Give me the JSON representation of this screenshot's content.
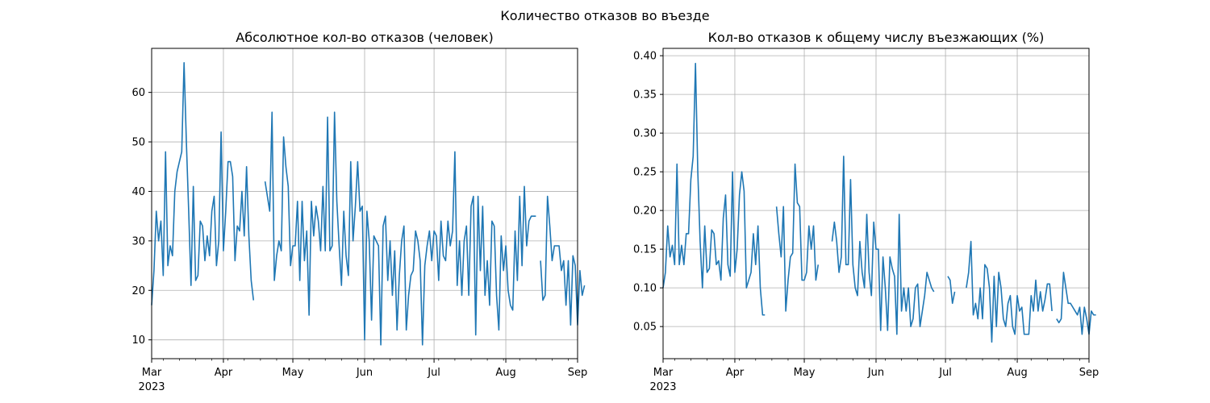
{
  "figure": {
    "suptitle": "Количество отказов во въезде"
  },
  "chart_data": [
    {
      "type": "line",
      "title": "Абсолютное кол-во отказов (человек)",
      "xlabel": "",
      "ylabel": "",
      "x_start": "2023-03-01",
      "xlim": [
        "2023-03-01",
        "2023-09-01"
      ],
      "ylim": [
        6.2,
        68.9
      ],
      "yticks": [
        10,
        20,
        30,
        40,
        50,
        60
      ],
      "xticks": [
        {
          "date": "2023-03-01",
          "label": "Mar",
          "sublabel": "2023"
        },
        {
          "date": "2023-04-01",
          "label": "Apr"
        },
        {
          "date": "2023-05-01",
          "label": "May"
        },
        {
          "date": "2023-06-01",
          "label": "Jun"
        },
        {
          "date": "2023-07-01",
          "label": "Jul"
        },
        {
          "date": "2023-08-01",
          "label": "Aug"
        },
        {
          "date": "2023-09-01",
          "label": "Sep"
        }
      ],
      "grid": true,
      "color": "#1f77b4",
      "series": [
        {
          "values": [
            17,
            24,
            36,
            30,
            34,
            23,
            48,
            25,
            29,
            27,
            40,
            44,
            46,
            48,
            66,
            50,
            36,
            21,
            41,
            22,
            23,
            34,
            33,
            26,
            31,
            27,
            36,
            39,
            25,
            30,
            52,
            28,
            36,
            46,
            46,
            43,
            26,
            33,
            32,
            40,
            31,
            45,
            31,
            22,
            18,
            null,
            null,
            null,
            null,
            42,
            39,
            36,
            56,
            22,
            27,
            30,
            28,
            51,
            45,
            41,
            25,
            29,
            29,
            38,
            22,
            38,
            26,
            32,
            15,
            38,
            31,
            37,
            34,
            28,
            41,
            28,
            55,
            28,
            29,
            56,
            38,
            29,
            21,
            36,
            27,
            23,
            46,
            30,
            37,
            46,
            36,
            37,
            10,
            36,
            30,
            14,
            31,
            30,
            29,
            9,
            33,
            35,
            22,
            30,
            19,
            28,
            12,
            23,
            30,
            33,
            12,
            19,
            23,
            24,
            32,
            30,
            26,
            9,
            25,
            29,
            32,
            26,
            32,
            31,
            22,
            34,
            27,
            26,
            34,
            29,
            32,
            48,
            21,
            30,
            19,
            30,
            33,
            19,
            37,
            39,
            11,
            39,
            24,
            37,
            19,
            26,
            17,
            34,
            33,
            19,
            12,
            31,
            24,
            29,
            20,
            17,
            16,
            32,
            22,
            39,
            25,
            41,
            29,
            34,
            35,
            35,
            35,
            null,
            26,
            18,
            19,
            39,
            33,
            26,
            29,
            29,
            29,
            24,
            26,
            17,
            26,
            13,
            27,
            25,
            13,
            24,
            19,
            21
          ]
        }
      ]
    },
    {
      "type": "line",
      "title": "Кол-во отказов к общему числу въезжающих (%)",
      "xlabel": "",
      "ylabel": "",
      "x_start": "2023-03-01",
      "xlim": [
        "2023-03-01",
        "2023-09-01"
      ],
      "ylim": [
        0.0085,
        0.4095
      ],
      "yticks": [
        0.05,
        0.1,
        0.15,
        0.2,
        0.25,
        0.3,
        0.35,
        0.4
      ],
      "ytick_labels": [
        "0.05",
        "0.10",
        "0.15",
        "0.20",
        "0.25",
        "0.30",
        "0.35",
        "0.40"
      ],
      "xticks": [
        {
          "date": "2023-03-01",
          "label": "Mar",
          "sublabel": "2023"
        },
        {
          "date": "2023-04-01",
          "label": "Apr"
        },
        {
          "date": "2023-05-01",
          "label": "May"
        },
        {
          "date": "2023-06-01",
          "label": "Jun"
        },
        {
          "date": "2023-07-01",
          "label": "Jul"
        },
        {
          "date": "2023-08-01",
          "label": "Aug"
        },
        {
          "date": "2023-09-01",
          "label": "Sep"
        }
      ],
      "grid": true,
      "color": "#1f77b4",
      "series": [
        {
          "values": [
            0.1,
            0.12,
            0.18,
            0.14,
            0.155,
            0.13,
            0.26,
            0.13,
            0.155,
            0.13,
            0.17,
            0.17,
            0.24,
            0.27,
            0.39,
            0.25,
            0.16,
            0.1,
            0.18,
            0.12,
            0.125,
            0.175,
            0.17,
            0.13,
            0.135,
            0.11,
            0.19,
            0.22,
            0.13,
            0.115,
            0.25,
            0.12,
            0.15,
            0.22,
            0.25,
            0.225,
            0.1,
            0.11,
            0.12,
            0.17,
            0.13,
            0.18,
            0.1,
            0.065,
            0.065,
            null,
            null,
            null,
            null,
            0.205,
            0.17,
            0.14,
            0.205,
            0.07,
            0.11,
            0.14,
            0.145,
            0.26,
            0.21,
            0.205,
            0.11,
            0.11,
            0.12,
            0.18,
            0.15,
            0.18,
            0.11,
            0.13,
            null,
            null,
            null,
            null,
            null,
            0.16,
            0.185,
            0.16,
            0.12,
            0.14,
            0.27,
            0.13,
            0.13,
            0.24,
            0.13,
            0.1,
            0.09,
            0.16,
            0.12,
            0.1,
            0.195,
            0.12,
            0.09,
            0.185,
            0.15,
            0.15,
            0.045,
            0.14,
            0.1,
            0.045,
            0.14,
            0.125,
            0.115,
            0.04,
            0.195,
            0.07,
            0.1,
            0.07,
            0.1,
            0.05,
            0.06,
            0.1,
            0.105,
            0.05,
            0.07,
            0.09,
            0.12,
            0.11,
            0.1,
            0.095,
            null,
            null,
            null,
            null,
            null,
            0.115,
            0.11,
            0.08,
            0.095,
            null,
            null,
            null,
            null,
            0.1,
            0.12,
            0.16,
            0.065,
            0.08,
            0.06,
            0.1,
            0.06,
            0.13,
            0.125,
            0.1,
            0.03,
            0.115,
            0.05,
            0.12,
            0.1,
            0.06,
            0.05,
            0.08,
            0.09,
            0.05,
            0.04,
            0.09,
            0.07,
            0.075,
            0.04,
            0.04,
            0.04,
            0.09,
            0.07,
            0.11,
            0.07,
            0.095,
            0.07,
            0.085,
            0.105,
            0.105,
            0.07,
            null,
            0.06,
            0.055,
            0.06,
            0.12,
            0.1,
            0.08,
            0.08,
            0.075,
            0.07,
            0.065,
            0.075,
            0.04,
            0.075,
            0.06,
            0.04,
            0.07,
            0.065,
            0.065
          ]
        }
      ]
    }
  ]
}
